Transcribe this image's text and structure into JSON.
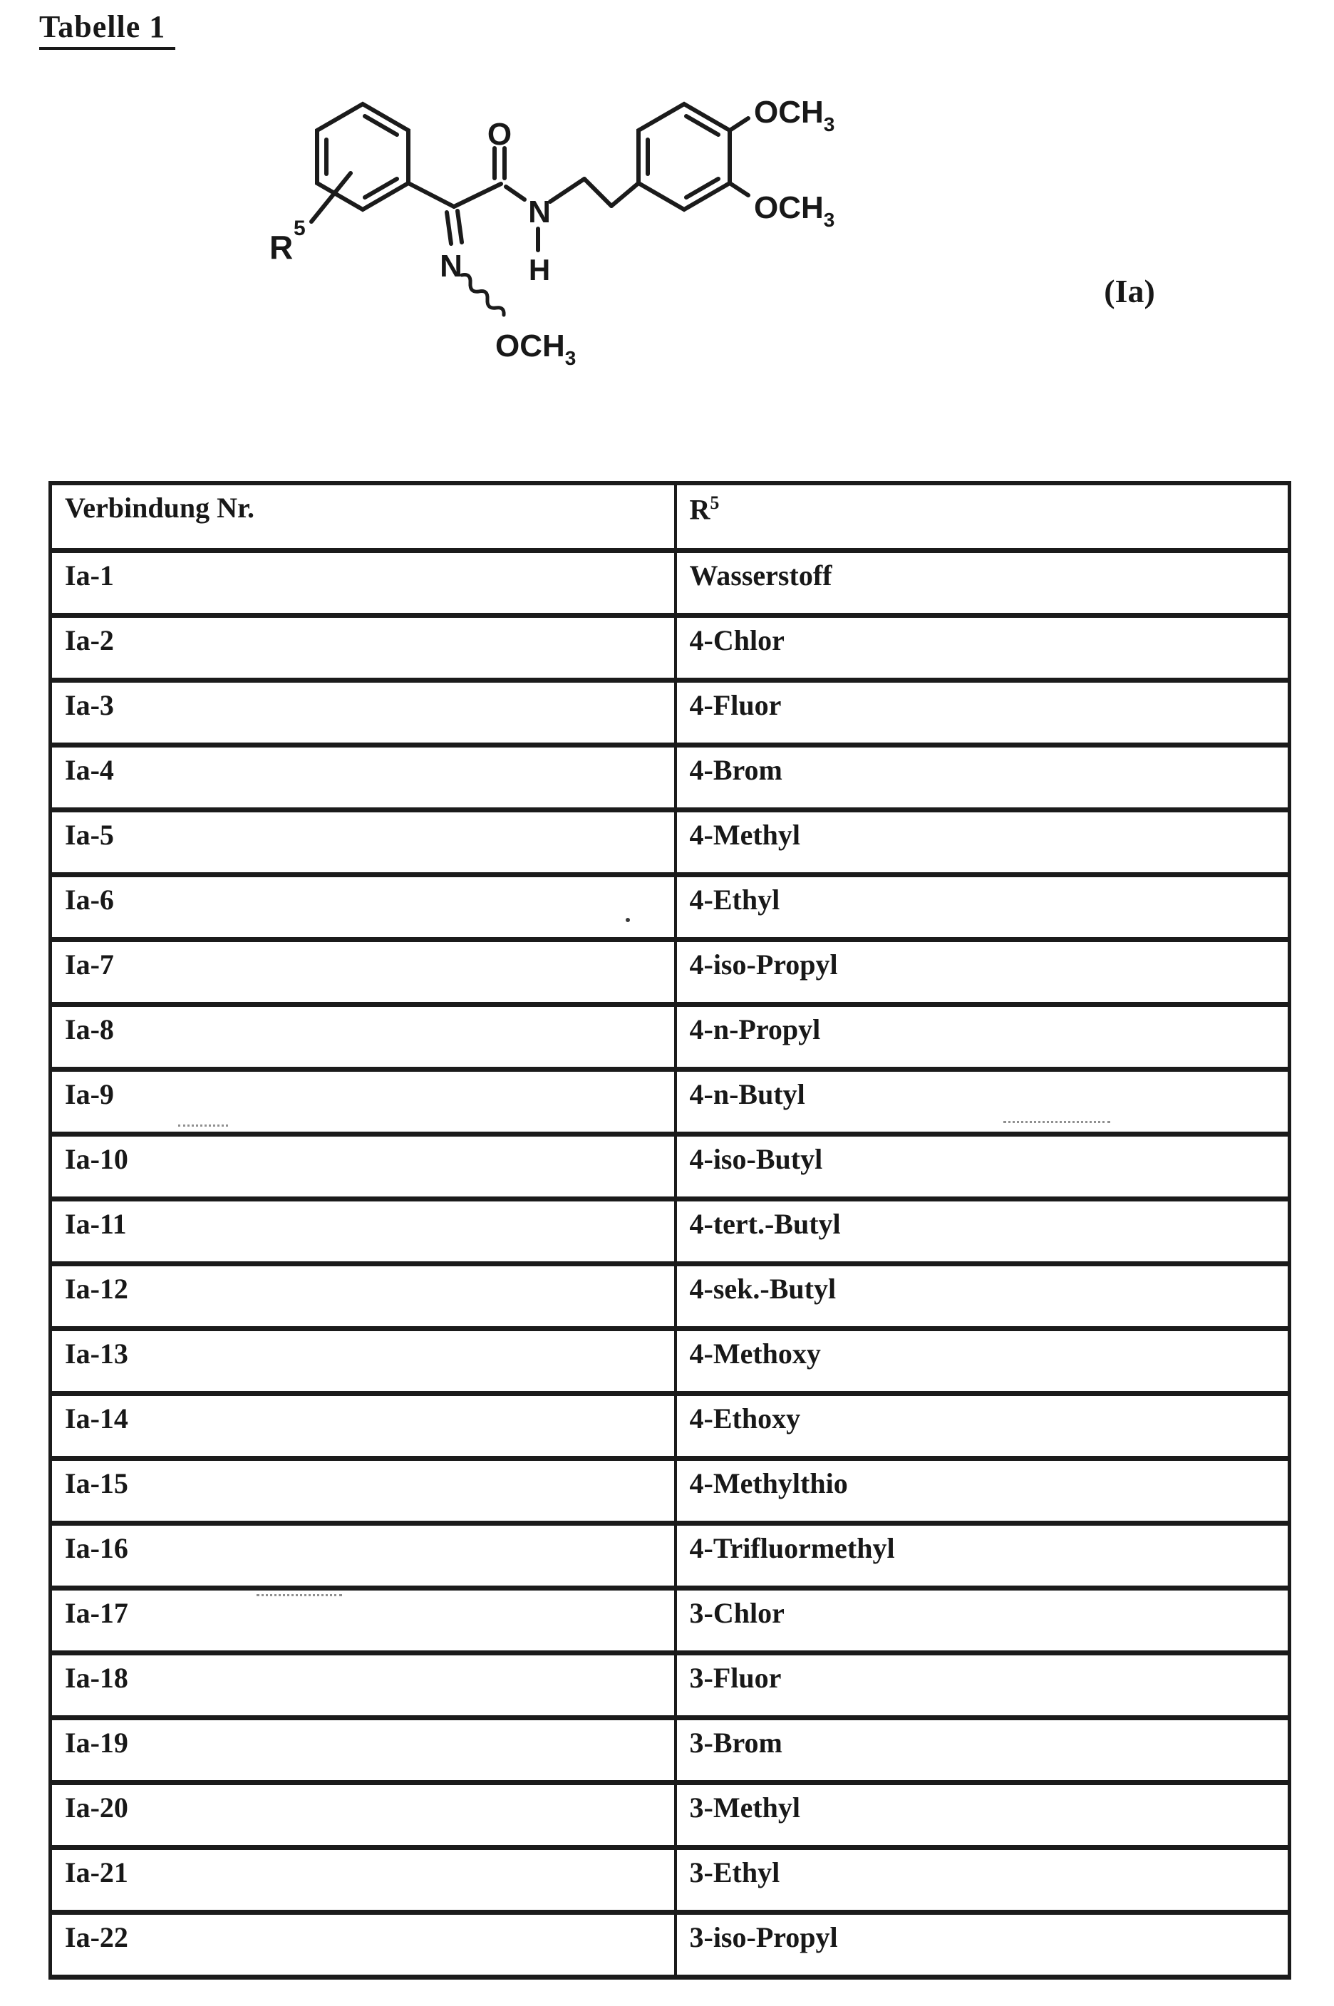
{
  "page": {
    "title": "Tabelle 1",
    "formula_label": "(Ia)"
  },
  "structure": {
    "labels": {
      "r": "R",
      "r_sup": "5",
      "oxime_n": "N",
      "oxime_och": "OCH",
      "oxime_och_sub": "3",
      "carbonyl_o": "O",
      "amide_n": "N",
      "amide_h": "H",
      "ring_och_top": "OCH",
      "ring_och_top_sub": "3",
      "ring_och_bottom": "OCH",
      "ring_och_bottom_sub": "3"
    }
  },
  "table": {
    "headers": {
      "col1": "Verbindung Nr.",
      "col2": "R",
      "col2_sup": "5"
    },
    "rows": [
      {
        "nr": "Ia-1",
        "r5": "Wasserstoff"
      },
      {
        "nr": "Ia-2",
        "r5": "4-Chlor"
      },
      {
        "nr": "Ia-3",
        "r5": "4-Fluor"
      },
      {
        "nr": "Ia-4",
        "r5": "4-Brom"
      },
      {
        "nr": "Ia-5",
        "r5": "4-Methyl"
      },
      {
        "nr": "Ia-6",
        "r5": "4-Ethyl"
      },
      {
        "nr": "Ia-7",
        "r5": "4-iso-Propyl"
      },
      {
        "nr": "Ia-8",
        "r5": "4-n-Propyl"
      },
      {
        "nr": "Ia-9",
        "r5": "4-n-Butyl"
      },
      {
        "nr": "Ia-10",
        "r5": "4-iso-Butyl"
      },
      {
        "nr": "Ia-11",
        "r5": "4-tert.-Butyl"
      },
      {
        "nr": "Ia-12",
        "r5": "4-sek.-Butyl"
      },
      {
        "nr": "Ia-13",
        "r5": "4-Methoxy"
      },
      {
        "nr": "Ia-14",
        "r5": "4-Ethoxy"
      },
      {
        "nr": "Ia-15",
        "r5": "4-Methylthio"
      },
      {
        "nr": "Ia-16",
        "r5": "4-Trifluormethyl"
      },
      {
        "nr": "Ia-17",
        "r5": "3-Chlor"
      },
      {
        "nr": "Ia-18",
        "r5": "3-Fluor"
      },
      {
        "nr": "Ia-19",
        "r5": "3-Brom"
      },
      {
        "nr": "Ia-20",
        "r5": "3-Methyl"
      },
      {
        "nr": "Ia-21",
        "r5": "3-Ethyl"
      },
      {
        "nr": "Ia-22",
        "r5": "3-iso-Propyl"
      }
    ]
  }
}
